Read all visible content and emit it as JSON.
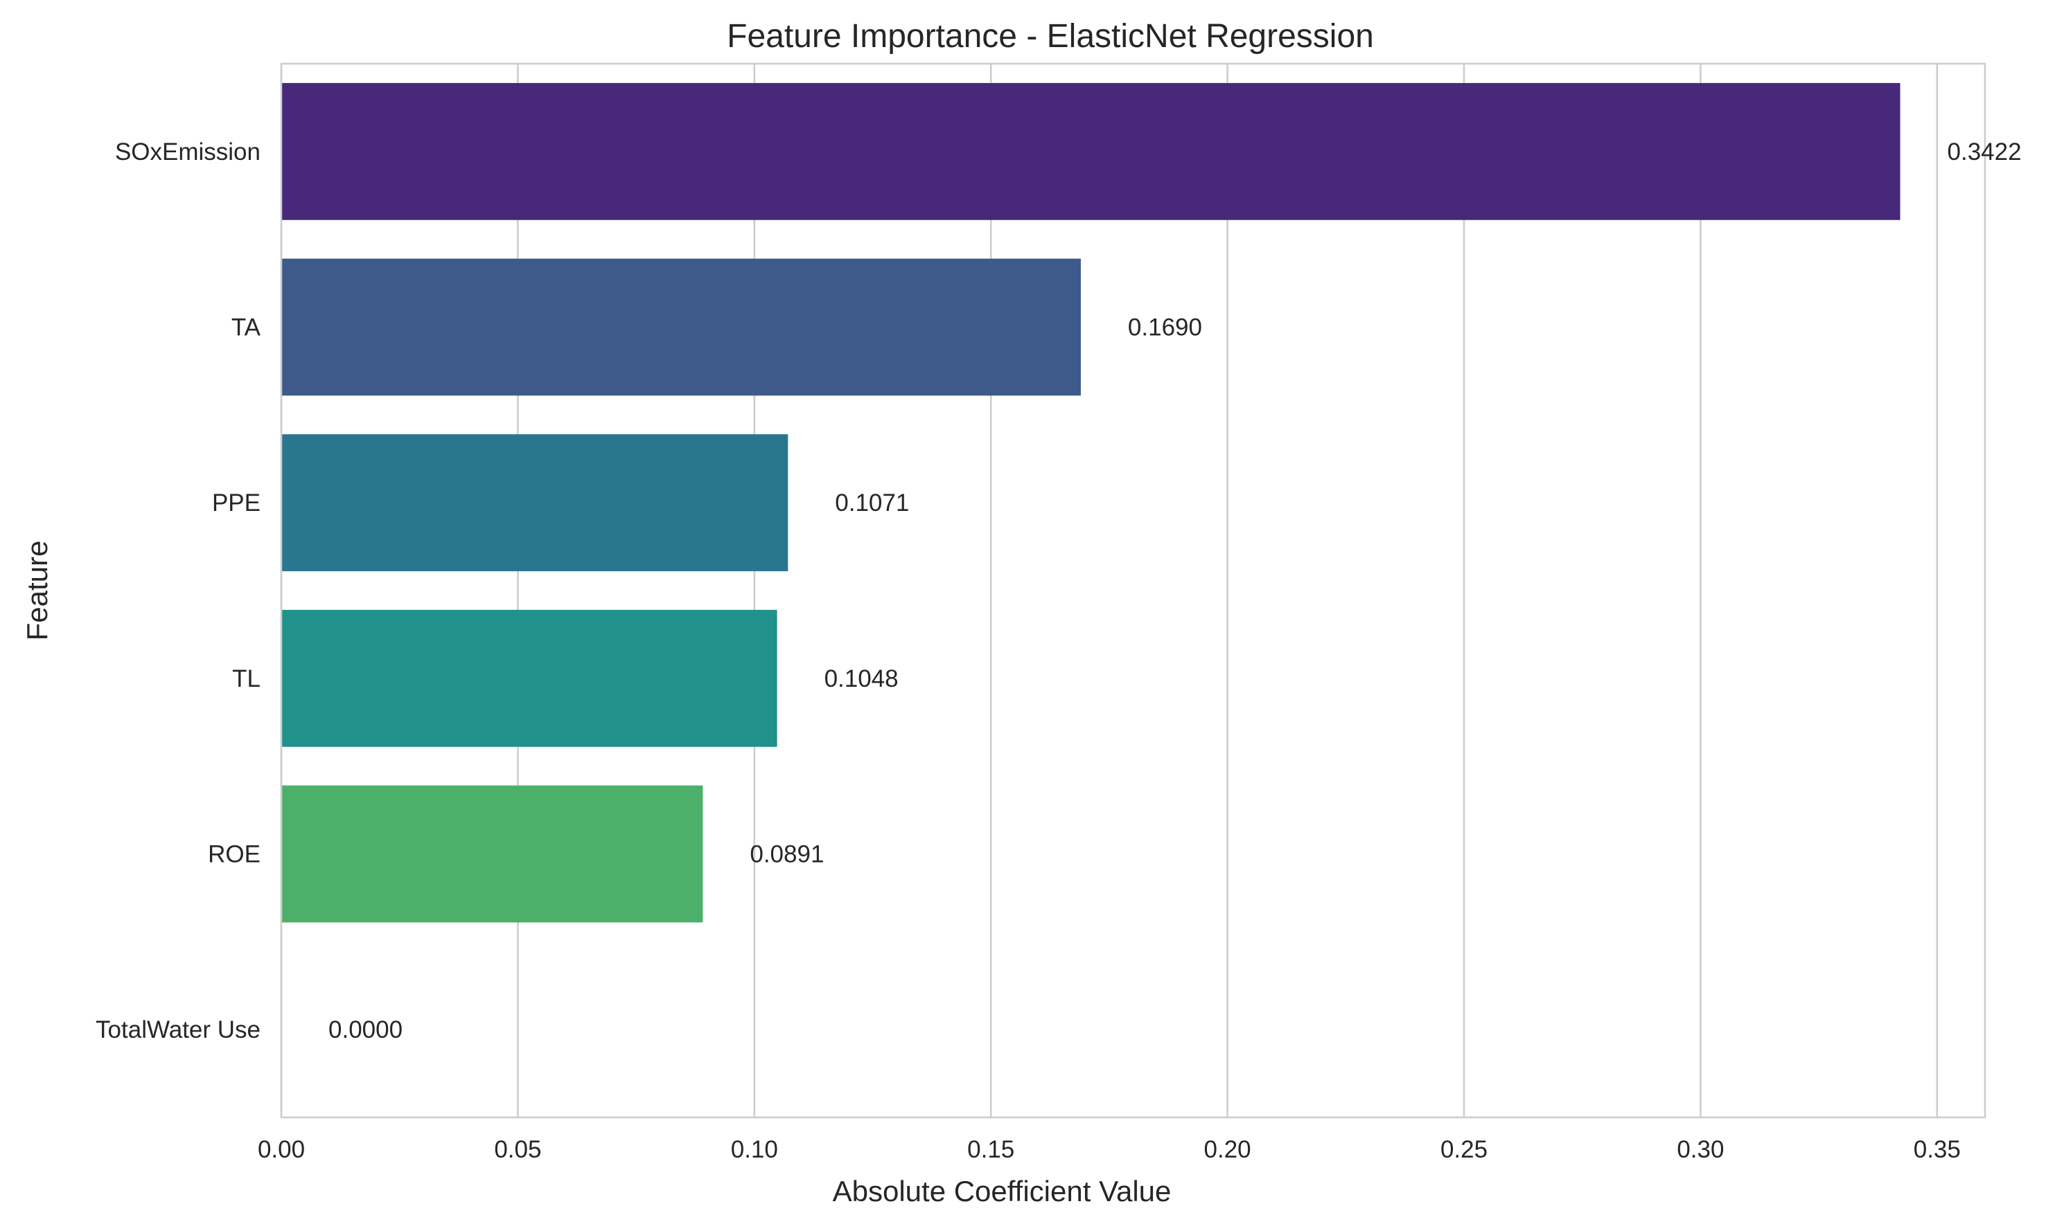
{
  "chart_data": {
    "type": "bar",
    "orientation": "horizontal",
    "title": "Feature Importance - ElasticNet Regression",
    "xlabel": "Absolute Coefficient Value",
    "ylabel": "Feature",
    "categories": [
      "SOxEmission",
      "TA",
      "PPE",
      "TL",
      "ROE",
      "TotalWater Use"
    ],
    "values": [
      0.3422,
      0.169,
      0.1071,
      0.1048,
      0.0891,
      0.0
    ],
    "value_labels": [
      "0.3422",
      "0.1690",
      "0.1071",
      "0.1048",
      "0.0891",
      "0.0000"
    ],
    "colors": [
      "#482878",
      "#3e5a8a",
      "#2a768e",
      "#21918c",
      "#4cb06b",
      "#7ad151"
    ],
    "xlim": [
      0,
      0.36
    ],
    "xticks": [
      0.0,
      0.05,
      0.1,
      0.15,
      0.2,
      0.25,
      0.3,
      0.35
    ],
    "xtick_labels": [
      "0.00",
      "0.05",
      "0.10",
      "0.15",
      "0.20",
      "0.25",
      "0.30",
      "0.35"
    ],
    "grid": "vertical",
    "legend": "none"
  }
}
